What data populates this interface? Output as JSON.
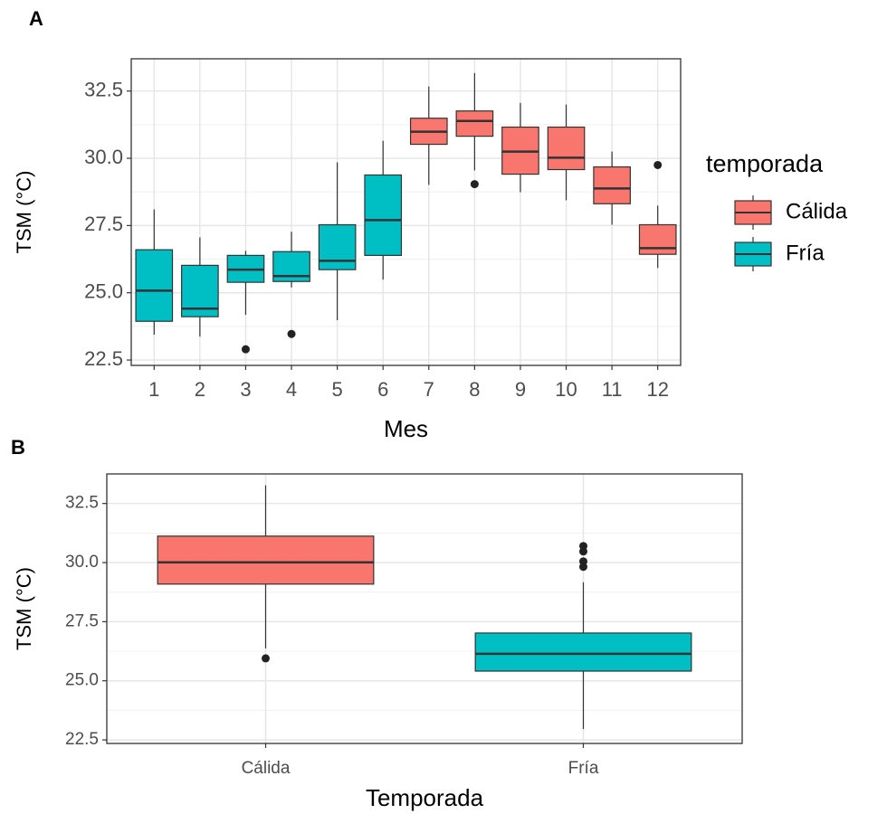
{
  "chart_data": [
    {
      "type": "boxplot",
      "panel": "A",
      "x_label": "Mes",
      "y_label": "TSM (°C)",
      "categories": [
        "1",
        "2",
        "3",
        "4",
        "5",
        "6",
        "7",
        "8",
        "9",
        "10",
        "11",
        "12"
      ],
      "ylim": [
        22.3,
        33.7
      ],
      "yticks": [
        22.5,
        {
          "value": 25,
          "label": "25.0"
        },
        27.5,
        {
          "value": 30,
          "label": "30.0"
        },
        32.5
      ],
      "grid": true,
      "legend": {
        "title": "temporada",
        "position": "right"
      },
      "series": [
        {
          "name": "Cálida",
          "color": "#F8766D"
        },
        {
          "name": "Fría",
          "color": "#00BFC4"
        }
      ],
      "boxes": [
        {
          "group": "Fría",
          "whisker_low": 23.44,
          "q1": 23.94,
          "median": 25.08,
          "q3": 26.6,
          "whisker_high": 28.1,
          "outliers": []
        },
        {
          "group": "Fría",
          "whisker_low": 23.37,
          "q1": 24.11,
          "median": 24.41,
          "q3": 26.02,
          "whisker_high": 27.06,
          "outliers": []
        },
        {
          "group": "Fría",
          "whisker_low": 24.18,
          "q1": 25.39,
          "median": 25.86,
          "q3": 26.39,
          "whisker_high": 26.56,
          "outliers": [
            22.9
          ]
        },
        {
          "group": "Fría",
          "whisker_low": 25.2,
          "q1": 25.42,
          "median": 25.62,
          "q3": 26.53,
          "whisker_high": 27.27,
          "outliers": [
            23.47
          ]
        },
        {
          "group": "Fría",
          "whisker_low": 23.98,
          "q1": 25.86,
          "median": 26.19,
          "q3": 27.53,
          "whisker_high": 29.85,
          "outliers": []
        },
        {
          "group": "Fría",
          "whisker_low": 25.49,
          "q1": 26.39,
          "median": 27.7,
          "q3": 29.38,
          "whisker_high": 30.65,
          "outliers": []
        },
        {
          "group": "Cálida",
          "whisker_low": 29.01,
          "q1": 30.52,
          "median": 30.99,
          "q3": 31.49,
          "whisker_high": 32.67,
          "outliers": []
        },
        {
          "group": "Cálida",
          "whisker_low": 29.55,
          "q1": 30.82,
          "median": 31.39,
          "q3": 31.76,
          "whisker_high": 33.17,
          "outliers": [
            29.04
          ]
        },
        {
          "group": "Cálida",
          "whisker_low": 28.74,
          "q1": 29.41,
          "median": 30.25,
          "q3": 31.16,
          "whisker_high": 32.06,
          "outliers": []
        },
        {
          "group": "Cálida",
          "whisker_low": 28.44,
          "q1": 29.58,
          "median": 30.02,
          "q3": 31.16,
          "whisker_high": 32.0,
          "outliers": []
        },
        {
          "group": "Cálida",
          "whisker_low": 27.53,
          "q1": 28.31,
          "median": 28.88,
          "q3": 29.68,
          "whisker_high": 30.25,
          "outliers": []
        },
        {
          "group": "Cálida",
          "whisker_low": 25.92,
          "q1": 26.43,
          "median": 26.66,
          "q3": 27.53,
          "whisker_high": 28.24,
          "outliers": [
            29.75
          ]
        }
      ]
    },
    {
      "type": "boxplot",
      "panel": "B",
      "x_label": "Temporada",
      "y_label": "TSM (°C)",
      "categories": [
        "Cálida",
        "Fría"
      ],
      "colors": [
        "#F8766D",
        "#00BFC4"
      ],
      "ylim": [
        22.35,
        33.75
      ],
      "yticks": [
        22.5,
        {
          "value": 25,
          "label": "25.0"
        },
        27.5,
        {
          "value": 30,
          "label": "30.0"
        },
        32.5
      ],
      "grid": true,
      "boxes": [
        {
          "whisker_low": 26.37,
          "q1": 29.09,
          "median": 30.01,
          "q3": 31.12,
          "whisker_high": 33.27,
          "outliers": [
            25.95
          ]
        },
        {
          "whisker_low": 22.96,
          "q1": 25.41,
          "median": 26.14,
          "q3": 27.02,
          "whisker_high": 29.17,
          "outliers": [
            30.7,
            30.47,
            30.05,
            29.82
          ]
        }
      ]
    }
  ]
}
